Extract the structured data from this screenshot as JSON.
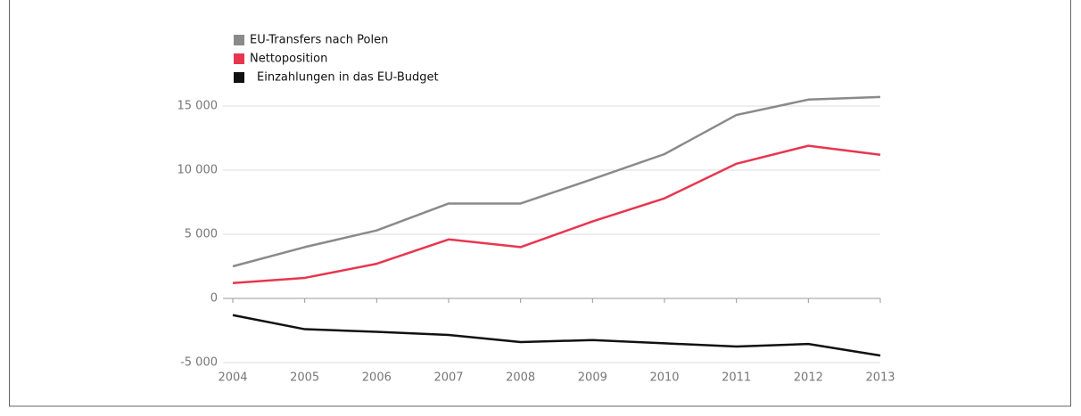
{
  "chart_data": {
    "type": "line",
    "x": [
      2004,
      2005,
      2006,
      2007,
      2008,
      2009,
      2010,
      2011,
      2012,
      2013
    ],
    "xlim": [
      2004,
      2013
    ],
    "xticks": [
      2004,
      2005,
      2006,
      2007,
      2008,
      2009,
      2010,
      2011,
      2012,
      2013
    ],
    "ylim": [
      -5000,
      15000
    ],
    "yticks": [
      {
        "value": -5000,
        "label": "-5 000"
      },
      0,
      {
        "value": 5000,
        "label": "5 000"
      },
      {
        "value": 10000,
        "label": "10 000"
      },
      {
        "value": 15000,
        "label": "15 000"
      }
    ],
    "grid": true,
    "legend": "top-left",
    "series": [
      {
        "name": "EU-Transfers nach Polen",
        "color": "#8a8a8c",
        "values": [
          2500,
          4000,
          5300,
          7400,
          7400,
          9300,
          11250,
          14300,
          15500,
          15700
        ]
      },
      {
        "name": "Nettoposition",
        "color": "#e8364f",
        "values": [
          1200,
          1600,
          2700,
          4600,
          4000,
          6000,
          7800,
          10500,
          11900,
          11200
        ]
      },
      {
        "name": "Einzahlungen in das EU-Budget",
        "color": "#111111",
        "values": [
          -1300,
          -2400,
          -2600,
          -2850,
          -3400,
          -3250,
          -3500,
          -3750,
          -3550,
          -4450
        ]
      }
    ]
  }
}
